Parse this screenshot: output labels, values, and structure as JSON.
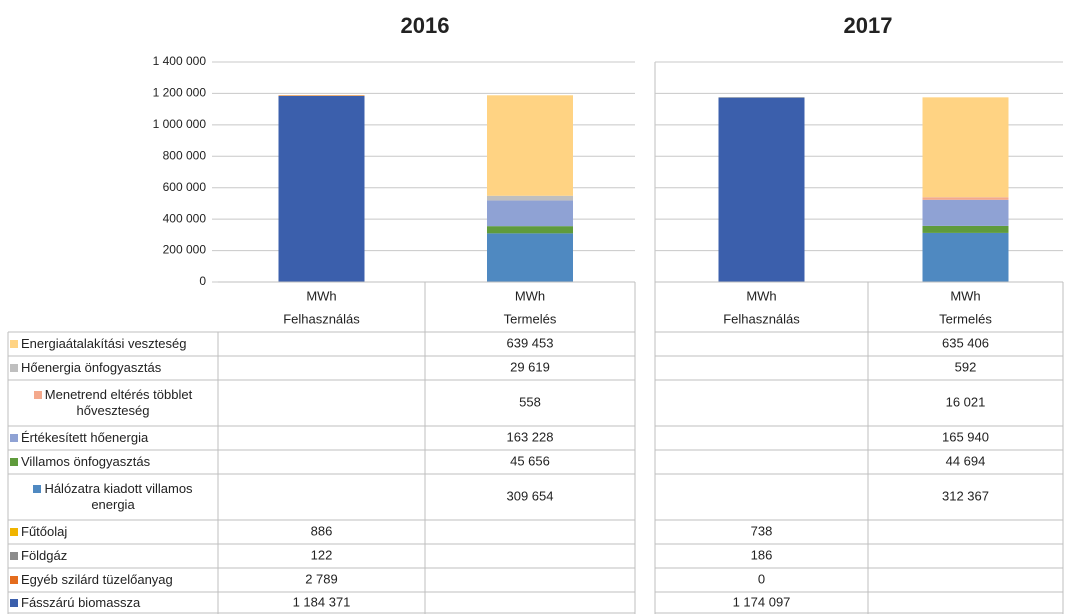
{
  "chart_data": [
    {
      "type": "bar",
      "stacked": true,
      "title": "2016",
      "unit": "MWh",
      "categories": [
        "Felhasználás",
        "Termelés"
      ],
      "ylim": [
        0,
        1400000
      ],
      "yticks": [
        0,
        {
          "value": 200000,
          "label": "200 000"
        },
        {
          "value": 400000,
          "label": "400 000"
        },
        {
          "value": 600000,
          "label": "600 000"
        },
        {
          "value": 800000,
          "label": "800 000"
        },
        {
          "value": 1000000,
          "label": "1 000 000"
        },
        {
          "value": 1200000,
          "label": "1 200 000"
        },
        {
          "value": 1400000,
          "label": "1 400 000"
        }
      ],
      "grid": true,
      "series": [
        {
          "name": "Energiaátalakítási veszteség",
          "color": "#ffd383",
          "values": [
            null,
            639453
          ],
          "value_labels": [
            null,
            "639 453"
          ]
        },
        {
          "name": "Hőenergia önfogyasztás",
          "color": "#bfbfbf",
          "values": [
            null,
            29619
          ],
          "value_labels": [
            null,
            "29 619"
          ]
        },
        {
          "name": "Menetrend eltérés többlet hőveszteség",
          "color": "#f4a98c",
          "values": [
            null,
            558
          ],
          "value_labels": [
            null,
            "558"
          ]
        },
        {
          "name": "Értékesített hőenergia",
          "color": "#8fa2d4",
          "values": [
            null,
            163228
          ],
          "value_labels": [
            null,
            "163 228"
          ]
        },
        {
          "name": "Villamos önfogyasztás",
          "color": "#5f9b3c",
          "values": [
            null,
            45656
          ],
          "value_labels": [
            null,
            "45 656"
          ]
        },
        {
          "name": "Hálózatra kiadott villamos energia",
          "color": "#4f89c1",
          "values": [
            null,
            309654
          ],
          "value_labels": [
            null,
            "309 654"
          ]
        },
        {
          "name": "Fűtőolaj",
          "color": "#f0b400",
          "values": [
            886,
            null
          ],
          "value_labels": [
            "886",
            null
          ]
        },
        {
          "name": "Földgáz",
          "color": "#8c8c8c",
          "values": [
            122,
            null
          ],
          "value_labels": [
            "122",
            null
          ]
        },
        {
          "name": "Egyéb szilárd tüzelőanyag",
          "color": "#e46c1e",
          "values": [
            2789,
            null
          ],
          "value_labels": [
            "2 789",
            null
          ]
        },
        {
          "name": "Fásszárú biomassza",
          "color": "#3b5fac",
          "values": [
            1184371,
            null
          ],
          "value_labels": [
            "1 184 371",
            null
          ]
        }
      ]
    },
    {
      "type": "bar",
      "stacked": true,
      "title": "2017",
      "unit": "MWh",
      "categories": [
        "Felhasználás",
        "Termelés"
      ],
      "ylim": [
        0,
        1400000
      ],
      "yticks": [
        0,
        200000,
        400000,
        600000,
        800000,
        1000000,
        1200000,
        1400000
      ],
      "grid": true,
      "series": [
        {
          "color": "#ffd383",
          "values": [
            null,
            635406
          ],
          "value_labels": [
            null,
            "635 406"
          ]
        },
        {
          "color": "#bfbfbf",
          "values": [
            null,
            592
          ],
          "value_labels": [
            null,
            "592"
          ]
        },
        {
          "color": "#f4a98c",
          "values": [
            null,
            16021
          ],
          "value_labels": [
            null,
            "16 021"
          ]
        },
        {
          "color": "#8fa2d4",
          "values": [
            null,
            165940
          ],
          "value_labels": [
            null,
            "165 940"
          ]
        },
        {
          "color": "#5f9b3c",
          "values": [
            null,
            44694
          ],
          "value_labels": [
            null,
            "44 694"
          ]
        },
        {
          "color": "#4f89c1",
          "values": [
            null,
            312367
          ],
          "value_labels": [
            null,
            "312 367"
          ]
        },
        {
          "color": "#f0b400",
          "values": [
            738,
            null
          ],
          "value_labels": [
            "738",
            null
          ]
        },
        {
          "color": "#8c8c8c",
          "values": [
            186,
            null
          ],
          "value_labels": [
            "186",
            null
          ]
        },
        {
          "color": "#e46c1e",
          "values": [
            0,
            null
          ],
          "value_labels": [
            "0",
            null
          ]
        },
        {
          "color": "#3b5fac",
          "values": [
            1174097,
            null
          ],
          "value_labels": [
            "1 174 097",
            null
          ]
        }
      ]
    }
  ]
}
